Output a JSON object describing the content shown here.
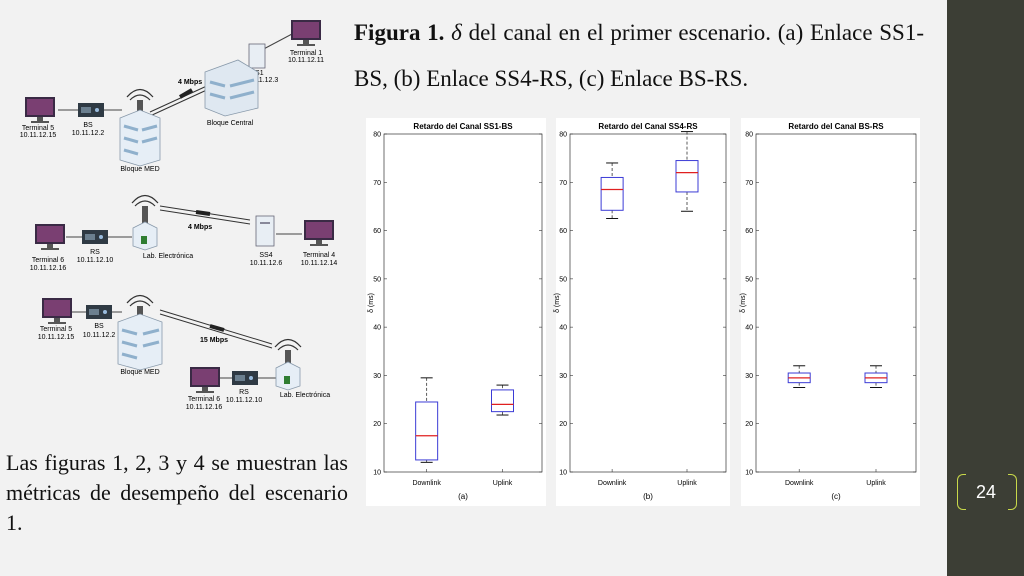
{
  "slide": {
    "caption_bold": "Figura 1.",
    "caption_symbol": "δ",
    "caption_rest": " del canal en el primer escenario. (a) Enlace SS1-BS, (b) Enlace SS4-RS, (c) Enlace BS-RS.",
    "body_text": "Las figuras 1, 2, 3 y 4 se muestran las métricas de desempeño del escenario 1.",
    "page_number": "24",
    "accent_color": "#c9d94a",
    "sidebar_color": "#3c3e35"
  },
  "diagrams": {
    "top": {
      "t1": "Terminal 1",
      "t1_ip": "10.11.12.11",
      "ss1": "SS1",
      "ss1_ip": "10.11.12.3",
      "speed": "4 Mbps",
      "central": "Bloque Central",
      "t5": "Terminal 5",
      "t5_ip": "10.11.12.15",
      "bs": "BS",
      "bs_ip": "10.11.12.2",
      "med": "Bloque MED"
    },
    "middle": {
      "speed": "4 Mbps",
      "rs": "RS",
      "rs_ip": "10.11.12.10",
      "t6": "Terminal 6",
      "t6_ip": "10.11.12.16",
      "lab": "Lab. Electrónica",
      "ss4": "SS4",
      "ss4_ip": "10.11.12.6",
      "t4": "Terminal 4",
      "t4_ip": "10.11.12.14"
    },
    "bottom": {
      "t5": "Terminal 5",
      "t5_ip": "10.11.12.15",
      "bs": "BS",
      "bs_ip": "10.11.12.2",
      "speed": "15 Mbps",
      "med": "Bloque MED",
      "t6": "Terminal 6",
      "t6_ip": "10.11.12.16",
      "rs": "RS",
      "rs_ip": "10.11.12.10",
      "lab": "Lab. Electrónica"
    }
  },
  "chart_data": [
    {
      "type": "box",
      "title": "Retardo del Canal SS1-BS",
      "ylabel": "δ (ms)",
      "subplot_label": "(a)",
      "ylim": [
        10,
        80
      ],
      "yticks": [
        10,
        20,
        30,
        40,
        50,
        60,
        70,
        80
      ],
      "categories": [
        "Downlink",
        "Uplink"
      ],
      "boxes": [
        {
          "min": 12,
          "q1": 12.5,
          "median": 17.5,
          "q3": 24.5,
          "max": 29.5
        },
        {
          "min": 21.8,
          "q1": 22.5,
          "median": 24,
          "q3": 27,
          "max": 28
        }
      ]
    },
    {
      "type": "box",
      "title": "Retardo del Canal SS4-RS",
      "ylabel": "δ (ms)",
      "subplot_label": "(b)",
      "ylim": [
        10,
        80
      ],
      "yticks": [
        10,
        20,
        30,
        40,
        50,
        60,
        70,
        80
      ],
      "categories": [
        "Downlink",
        "Uplink"
      ],
      "boxes": [
        {
          "min": 62.5,
          "q1": 64.2,
          "median": 68.5,
          "q3": 71,
          "max": 74
        },
        {
          "min": 64,
          "q1": 68,
          "median": 72,
          "q3": 74.5,
          "max": 80.5
        }
      ]
    },
    {
      "type": "box",
      "title": "Retardo del Canal BS-RS",
      "ylabel": "δ (ms)",
      "subplot_label": "(c)",
      "ylim": [
        10,
        80
      ],
      "yticks": [
        10,
        20,
        30,
        40,
        50,
        60,
        70,
        80
      ],
      "categories": [
        "Downlink",
        "Uplink"
      ],
      "boxes": [
        {
          "min": 27.5,
          "q1": 28.5,
          "median": 29.5,
          "q3": 30.5,
          "max": 32
        },
        {
          "min": 27.5,
          "q1": 28.5,
          "median": 29.5,
          "q3": 30.5,
          "max": 32
        }
      ]
    }
  ]
}
